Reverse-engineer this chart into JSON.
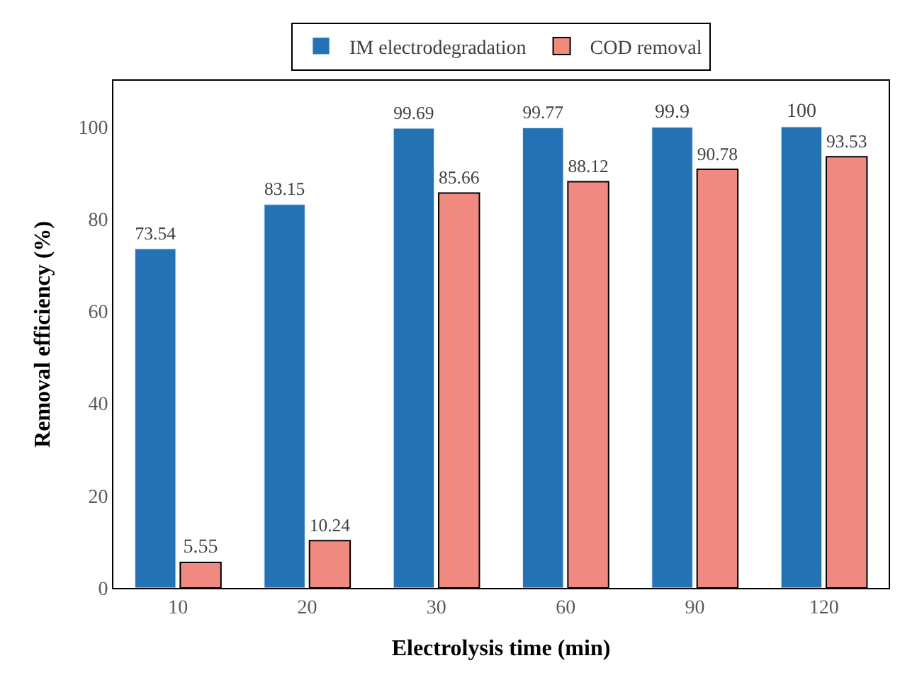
{
  "chart_data": {
    "type": "bar",
    "xlabel": "Electrolysis time (min)",
    "ylabel": "Removal efficiency (%)",
    "categories": [
      "10",
      "20",
      "30",
      "60",
      "90",
      "120"
    ],
    "series": [
      {
        "name": "IM electrodegradation",
        "color": "#2472b4",
        "values": [
          73.54,
          83.15,
          99.69,
          99.77,
          99.9,
          100
        ]
      },
      {
        "name": "COD removal",
        "color": "#f08a80",
        "values": [
          5.55,
          10.24,
          85.66,
          88.12,
          90.78,
          93.53
        ]
      }
    ],
    "ylim": [
      0,
      110
    ],
    "yticks": [
      0,
      20,
      40,
      60,
      80,
      100
    ],
    "legend": "top",
    "data_labels": true
  }
}
